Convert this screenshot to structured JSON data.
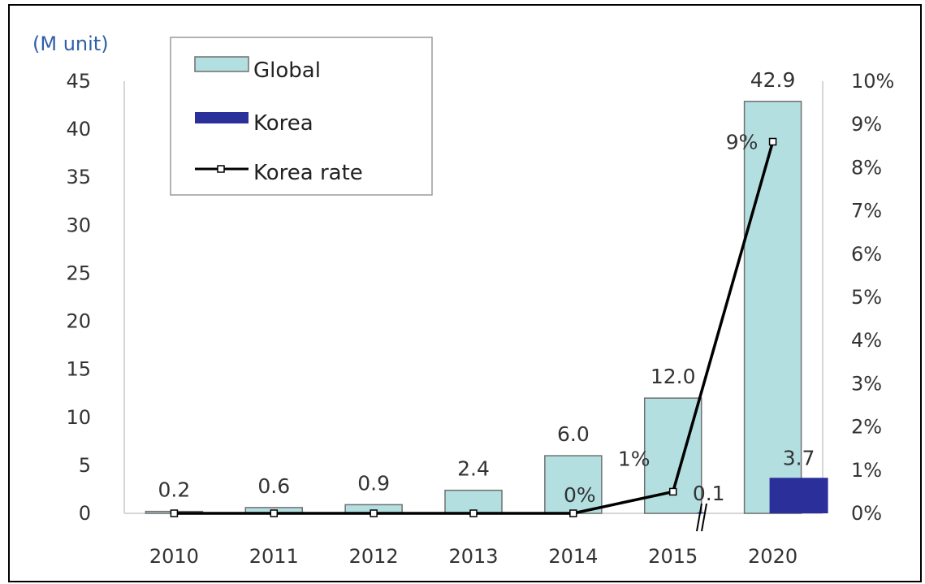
{
  "chart_data": {
    "type": "bar",
    "y_unit_label": "(M unit)",
    "categories": [
      "2010",
      "2011",
      "2012",
      "2013",
      "2014",
      "2015",
      "2020"
    ],
    "series": [
      {
        "name": "Global",
        "kind": "bar",
        "color": "#b4dfe1",
        "values": [
          0.2,
          0.6,
          0.9,
          2.4,
          6.0,
          12.0,
          42.9
        ],
        "labels": [
          "0.2",
          "0.6",
          "0.9",
          "2.4",
          "6.0",
          "12.0",
          "42.9"
        ]
      },
      {
        "name": "Korea",
        "kind": "bar",
        "color": "#2b2f9a",
        "values": [
          0,
          0,
          0,
          0,
          0,
          0.1,
          3.7
        ],
        "labels": [
          "",
          "",
          "",
          "",
          "",
          "0.1",
          "3.7"
        ]
      },
      {
        "name": "Korea rate",
        "kind": "line",
        "axis": "right",
        "color": "#000000",
        "values": [
          0,
          0,
          0,
          0,
          0,
          0.5,
          8.6
        ],
        "labels": [
          "",
          "",
          "",
          "",
          "0%",
          "1%",
          "9%"
        ]
      }
    ],
    "y_left": {
      "min": 0,
      "max": 45,
      "ticks": [
        "0",
        "5",
        "10",
        "15",
        "20",
        "25",
        "30",
        "35",
        "40",
        "45"
      ]
    },
    "y_right": {
      "min": 0,
      "max": 10,
      "ticks": [
        "0%",
        "1%",
        "2%",
        "3%",
        "4%",
        "5%",
        "6%",
        "7%",
        "8%",
        "9%",
        "10%"
      ]
    },
    "axis_break_between": [
      "2015",
      "2020"
    ],
    "legend": {
      "position": "top-left",
      "entries": [
        "Global",
        "Korea",
        "Korea rate"
      ]
    }
  }
}
